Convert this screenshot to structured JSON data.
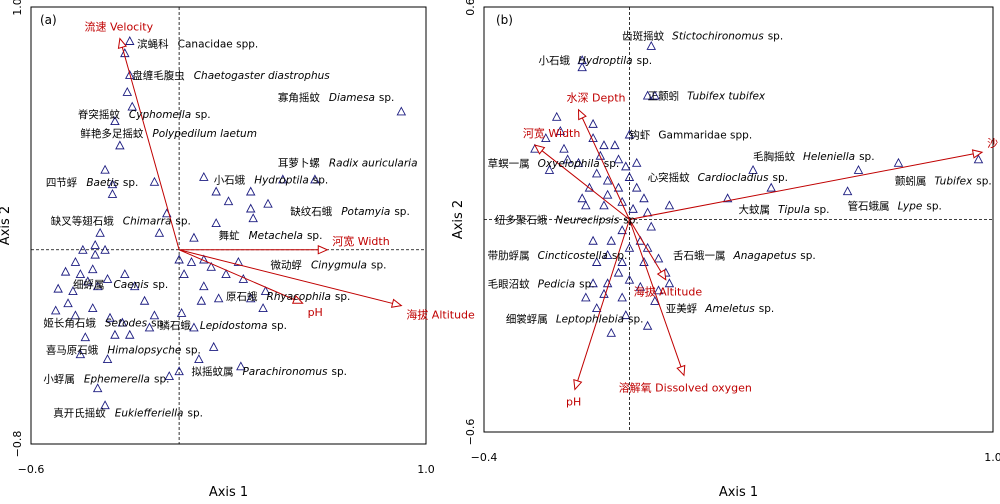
{
  "chart_data": [
    {
      "type": "scatter",
      "panel_label": "(a)",
      "xlabel": "Axis 1",
      "ylabel": "Axis 2",
      "xlim": [
        -0.6,
        1.0
      ],
      "ylim": [
        -0.8,
        1.0
      ],
      "x_tick_labels": [
        {
          "value": -0.6,
          "label": "−0.6"
        },
        {
          "value": 1.0,
          "label": "1.0"
        }
      ],
      "y_tick_labels": [
        {
          "value": 1.0,
          "label": "1.0"
        },
        {
          "value": -0.8,
          "label": "−0.8"
        }
      ],
      "env_vectors": [
        {
          "label": "流速 Velocity",
          "x": -0.24,
          "y": 0.87
        },
        {
          "label": "河宽 Width",
          "x": 0.6,
          "y": 0.0
        },
        {
          "label": "pH",
          "x": 0.5,
          "y": -0.22
        },
        {
          "label": "海拔 Altitude",
          "x": 0.9,
          "y": -0.23
        }
      ],
      "species_labels": [
        {
          "zh": "滨蝇科",
          "en": "Canacidae spp.",
          "italic": false,
          "x": -0.17,
          "y": 0.85
        },
        {
          "zh": "盘缠毛腹虫",
          "en": "Chaetogaster diastrophus",
          "italic": true,
          "x": -0.19,
          "y": 0.72
        },
        {
          "zh": "寡角摇蚊",
          "en": "Diamesa",
          "suffix": "sp.",
          "italic": true,
          "x": 0.4,
          "y": 0.63
        },
        {
          "zh": "脊突摇蚊",
          "en": "Cyphomella",
          "suffix": "sp.",
          "italic": true,
          "x": -0.41,
          "y": 0.56
        },
        {
          "zh": "鲜艳多足摇蚊",
          "en": "Polypedilum laetum",
          "italic": true,
          "x": -0.4,
          "y": 0.48
        },
        {
          "zh": "耳萝卜螺",
          "en": "Radix auricularia",
          "italic": true,
          "x": 0.4,
          "y": 0.36
        },
        {
          "zh": "小石蛾",
          "en": "Hydroptila",
          "suffix": "sp.",
          "italic": true,
          "x": 0.14,
          "y": 0.29
        },
        {
          "zh": "四节蜉",
          "en": "Baetis",
          "suffix": "sp.",
          "italic": true,
          "x": -0.54,
          "y": 0.28
        },
        {
          "zh": "缺纹石蛾",
          "en": "Potamyia",
          "suffix": "sp.",
          "italic": true,
          "x": 0.45,
          "y": 0.16
        },
        {
          "zh": "缺叉等翅石蛾",
          "en": "Chimarra",
          "suffix": "sp.",
          "italic": true,
          "x": -0.52,
          "y": 0.12
        },
        {
          "zh": "舞虻",
          "en": "Metachela",
          "suffix": "sp.",
          "italic": true,
          "x": 0.16,
          "y": 0.06
        },
        {
          "zh": "微动蜉",
          "en": "Cinygmula",
          "suffix": "sp.",
          "italic": true,
          "x": 0.37,
          "y": -0.06
        },
        {
          "zh": "细蜉属",
          "en": "Caenis",
          "suffix": "sp.",
          "italic": true,
          "x": -0.43,
          "y": -0.14
        },
        {
          "zh": "原石蛾",
          "en": "Rhyacophila",
          "suffix": "sp.",
          "italic": true,
          "x": 0.19,
          "y": -0.19
        },
        {
          "zh": "姬长角石蛾",
          "en": "Setodes",
          "suffix": "sp.",
          "italic": true,
          "x": -0.55,
          "y": -0.3
        },
        {
          "zh": "鳞石蛾",
          "en": "Lepidostoma",
          "suffix": "sp.",
          "italic": true,
          "x": -0.08,
          "y": -0.31
        },
        {
          "zh": "喜马原石蛾",
          "en": "Himalopsyche",
          "suffix": "sp.",
          "italic": true,
          "x": -0.54,
          "y": -0.41
        },
        {
          "zh": "拟摇蚊属",
          "en": "Parachironomus",
          "suffix": "sp.",
          "italic": true,
          "x": 0.05,
          "y": -0.5
        },
        {
          "zh": "小蜉属",
          "en": "Ephemerella",
          "suffix": "sp.",
          "italic": true,
          "x": -0.55,
          "y": -0.53
        },
        {
          "zh": "真开氏摇蚊",
          "en": "Eukiefferiella",
          "suffix": "sp.",
          "italic": true,
          "x": -0.51,
          "y": -0.67
        }
      ],
      "points": [
        [
          -0.2,
          0.86
        ],
        [
          -0.22,
          0.81
        ],
        [
          -0.2,
          0.72
        ],
        [
          -0.21,
          0.65
        ],
        [
          -0.19,
          0.59
        ],
        [
          -0.26,
          0.53
        ],
        [
          -0.24,
          0.43
        ],
        [
          -0.1,
          0.28
        ],
        [
          -0.3,
          0.33
        ],
        [
          -0.27,
          0.27
        ],
        [
          0.1,
          0.3
        ],
        [
          0.15,
          0.24
        ],
        [
          0.2,
          0.2
        ],
        [
          0.29,
          0.24
        ],
        [
          0.36,
          0.19
        ],
        [
          0.42,
          0.29
        ],
        [
          0.55,
          0.29
        ],
        [
          0.29,
          0.17
        ],
        [
          0.9,
          0.57
        ],
        [
          0.3,
          0.13
        ],
        [
          0.15,
          0.11
        ],
        [
          0.06,
          0.05
        ],
        [
          -0.05,
          0.15
        ],
        [
          -0.08,
          0.07
        ],
        [
          -0.32,
          0.07
        ],
        [
          -0.34,
          0.02
        ],
        [
          -0.39,
          0.0
        ],
        [
          -0.34,
          -0.02
        ],
        [
          -0.3,
          0.0
        ],
        [
          -0.42,
          -0.05
        ],
        [
          -0.4,
          -0.1
        ],
        [
          -0.35,
          -0.08
        ],
        [
          -0.37,
          -0.13
        ],
        [
          -0.46,
          -0.09
        ],
        [
          -0.49,
          -0.16
        ],
        [
          -0.43,
          -0.17
        ],
        [
          -0.33,
          -0.15
        ],
        [
          -0.29,
          -0.12
        ],
        [
          -0.45,
          -0.22
        ],
        [
          -0.5,
          -0.25
        ],
        [
          -0.42,
          -0.27
        ],
        [
          -0.35,
          -0.24
        ],
        [
          -0.28,
          -0.28
        ],
        [
          -0.22,
          -0.1
        ],
        [
          -0.18,
          -0.15
        ],
        [
          -0.14,
          -0.21
        ],
        [
          -0.1,
          -0.27
        ],
        [
          -0.12,
          -0.32
        ],
        [
          -0.2,
          -0.35
        ],
        [
          -0.23,
          -0.3
        ],
        [
          -0.26,
          -0.35
        ],
        [
          -0.38,
          -0.36
        ],
        [
          -0.4,
          -0.43
        ],
        [
          -0.29,
          -0.45
        ],
        [
          0.02,
          -0.1
        ],
        [
          0.05,
          -0.05
        ],
        [
          0.1,
          -0.04
        ],
        [
          0.13,
          -0.07
        ],
        [
          0.19,
          -0.1
        ],
        [
          0.24,
          -0.05
        ],
        [
          0.1,
          -0.15
        ],
        [
          0.16,
          -0.2
        ],
        [
          0.26,
          -0.12
        ],
        [
          0.29,
          -0.2
        ],
        [
          0.35,
          -0.17
        ],
        [
          0.01,
          -0.26
        ],
        [
          0.06,
          -0.32
        ],
        [
          0.14,
          -0.4
        ],
        [
          0.25,
          -0.48
        ],
        [
          0.08,
          -0.45
        ],
        [
          -0.04,
          -0.52
        ],
        [
          -0.3,
          -0.64
        ],
        [
          0.0,
          -0.5
        ],
        [
          -0.33,
          -0.57
        ],
        [
          0.0,
          -0.04
        ],
        [
          -0.27,
          0.23
        ],
        [
          0.09,
          -0.21
        ],
        [
          0.34,
          -0.24
        ]
      ]
    },
    {
      "type": "scatter",
      "panel_label": "(b)",
      "xlabel": "Axis 1",
      "ylabel": "Axis 2",
      "xlim": [
        -0.4,
        1.0
      ],
      "ylim": [
        -0.6,
        0.6
      ],
      "x_tick_labels": [
        {
          "value": -0.4,
          "label": "−0.4"
        },
        {
          "value": 1.0,
          "label": "1.0"
        }
      ],
      "y_tick_labels": [
        {
          "value": 0.6,
          "label": "0.6"
        },
        {
          "value": -0.6,
          "label": "−0.6"
        }
      ],
      "env_vectors": [
        {
          "label": "沙 % Sand%",
          "x": 0.97,
          "y": 0.19
        },
        {
          "label": "水深 Depth",
          "x": -0.14,
          "y": 0.31
        },
        {
          "label": "河宽 Width",
          "x": -0.26,
          "y": 0.21
        },
        {
          "label": "海拔 Altitude",
          "x": 0.1,
          "y": -0.17
        },
        {
          "label": "溶解氧 Dissolved oxygen",
          "x": 0.15,
          "y": -0.44
        },
        {
          "label": "pH",
          "x": -0.15,
          "y": -0.48
        }
      ],
      "species_labels": [
        {
          "zh": "齿斑摇蚊",
          "en": "Stictochironomus",
          "suffix": "sp.",
          "italic": true,
          "x": -0.02,
          "y": 0.52
        },
        {
          "zh": "小石蛾",
          "en": "Hydroptila",
          "suffix": "sp.",
          "italic": true,
          "x": -0.25,
          "y": 0.45
        },
        {
          "zh": "正颤蚓",
          "en": "Tubifex tubifex",
          "italic": true,
          "x": 0.05,
          "y": 0.35
        },
        {
          "zh": "钩虾",
          "en": "Gammaridae spp.",
          "italic": false,
          "x": 0.0,
          "y": 0.24
        },
        {
          "zh": "草螟一属",
          "en": "Oxyelophila",
          "suffix": "sp.",
          "italic": true,
          "x": -0.39,
          "y": 0.16
        },
        {
          "zh": "毛胸摇蚊",
          "en": "Heleniella",
          "suffix": "sp.",
          "italic": true,
          "x": 0.34,
          "y": 0.18
        },
        {
          "zh": "心突摇蚊",
          "en": "Cardiocladius",
          "suffix": "sp.",
          "italic": true,
          "x": 0.05,
          "y": 0.12
        },
        {
          "zh": "颤蚓属",
          "en": "Tubifex",
          "suffix": "sp.",
          "italic": true,
          "x": 0.73,
          "y": 0.11
        },
        {
          "zh": "大蚊属",
          "en": "Tipula",
          "suffix": "sp.",
          "italic": true,
          "x": 0.3,
          "y": 0.03
        },
        {
          "zh": "管石蛾属",
          "en": "Lype",
          "suffix": "sp.",
          "italic": true,
          "x": 0.6,
          "y": 0.04
        },
        {
          "zh": "纽多聚石蛾",
          "en": "Neureclipsis",
          "suffix": "sp.",
          "italic": true,
          "x": -0.37,
          "y": 0.0
        },
        {
          "zh": "带肋蜉属",
          "en": "Cincticostella",
          "suffix": "sp.",
          "italic": true,
          "x": -0.39,
          "y": -0.1
        },
        {
          "zh": "舌石蛾一属",
          "en": "Anagapetus",
          "suffix": "sp.",
          "italic": true,
          "x": 0.12,
          "y": -0.1
        },
        {
          "zh": "毛眼沼蚊",
          "en": "Pedicia",
          "suffix": "sp.",
          "italic": true,
          "x": -0.39,
          "y": -0.18
        },
        {
          "zh": "亚美蜉",
          "en": "Ameletus",
          "suffix": "sp.",
          "italic": true,
          "x": 0.1,
          "y": -0.25
        },
        {
          "zh": "细裳蜉属",
          "en": "Leptophlebia",
          "suffix": "sp.",
          "italic": true,
          "x": -0.34,
          "y": -0.28
        }
      ],
      "points": [
        [
          0.06,
          0.49
        ],
        [
          -0.13,
          0.45
        ],
        [
          -0.13,
          0.43
        ],
        [
          0.05,
          0.35
        ],
        [
          0.07,
          0.35
        ],
        [
          -0.2,
          0.29
        ],
        [
          -0.23,
          0.23
        ],
        [
          -0.19,
          0.25
        ],
        [
          -0.1,
          0.27
        ],
        [
          -0.07,
          0.21
        ],
        [
          0.0,
          0.24
        ],
        [
          -0.04,
          0.21
        ],
        [
          -0.1,
          0.23
        ],
        [
          -0.18,
          0.2
        ],
        [
          -0.26,
          0.2
        ],
        [
          -0.08,
          0.18
        ],
        [
          -0.03,
          0.17
        ],
        [
          -0.01,
          0.15
        ],
        [
          0.02,
          0.16
        ],
        [
          -0.14,
          0.16
        ],
        [
          -0.17,
          0.17
        ],
        [
          -0.22,
          0.14
        ],
        [
          -0.09,
          0.13
        ],
        [
          -0.11,
          0.09
        ],
        [
          -0.13,
          0.06
        ],
        [
          -0.06,
          0.11
        ],
        [
          -0.03,
          0.09
        ],
        [
          0.0,
          0.12
        ],
        [
          0.02,
          0.09
        ],
        [
          0.04,
          0.06
        ],
        [
          -0.06,
          0.07
        ],
        [
          -0.02,
          0.05
        ],
        [
          -0.12,
          0.04
        ],
        [
          -0.07,
          0.04
        ],
        [
          0.01,
          0.03
        ],
        [
          0.05,
          0.02
        ],
        [
          0.11,
          0.04
        ],
        [
          0.27,
          0.06
        ],
        [
          0.39,
          0.09
        ],
        [
          0.6,
          0.08
        ],
        [
          0.74,
          0.16
        ],
        [
          0.96,
          0.17
        ],
        [
          0.63,
          0.14
        ],
        [
          0.34,
          0.14
        ],
        [
          0.06,
          -0.02
        ],
        [
          -0.02,
          -0.03
        ],
        [
          0.03,
          -0.06
        ],
        [
          -0.05,
          -0.06
        ],
        [
          0.0,
          -0.08
        ],
        [
          0.05,
          -0.08
        ],
        [
          0.08,
          -0.11
        ],
        [
          0.1,
          -0.15
        ],
        [
          0.04,
          -0.12
        ],
        [
          -0.02,
          -0.12
        ],
        [
          -0.06,
          -0.1
        ],
        [
          -0.09,
          -0.12
        ],
        [
          -0.03,
          -0.15
        ],
        [
          0.0,
          -0.17
        ],
        [
          0.03,
          -0.19
        ],
        [
          -0.06,
          -0.18
        ],
        [
          -0.1,
          -0.18
        ],
        [
          -0.07,
          -0.21
        ],
        [
          -0.02,
          -0.22
        ],
        [
          -0.09,
          -0.25
        ],
        [
          -0.12,
          -0.22
        ],
        [
          0.07,
          -0.23
        ],
        [
          -0.01,
          -0.27
        ],
        [
          0.05,
          -0.3
        ],
        [
          -0.05,
          -0.32
        ],
        [
          0.08,
          -0.2
        ],
        [
          0.11,
          -0.18
        ],
        [
          -0.1,
          -0.06
        ]
      ]
    }
  ]
}
